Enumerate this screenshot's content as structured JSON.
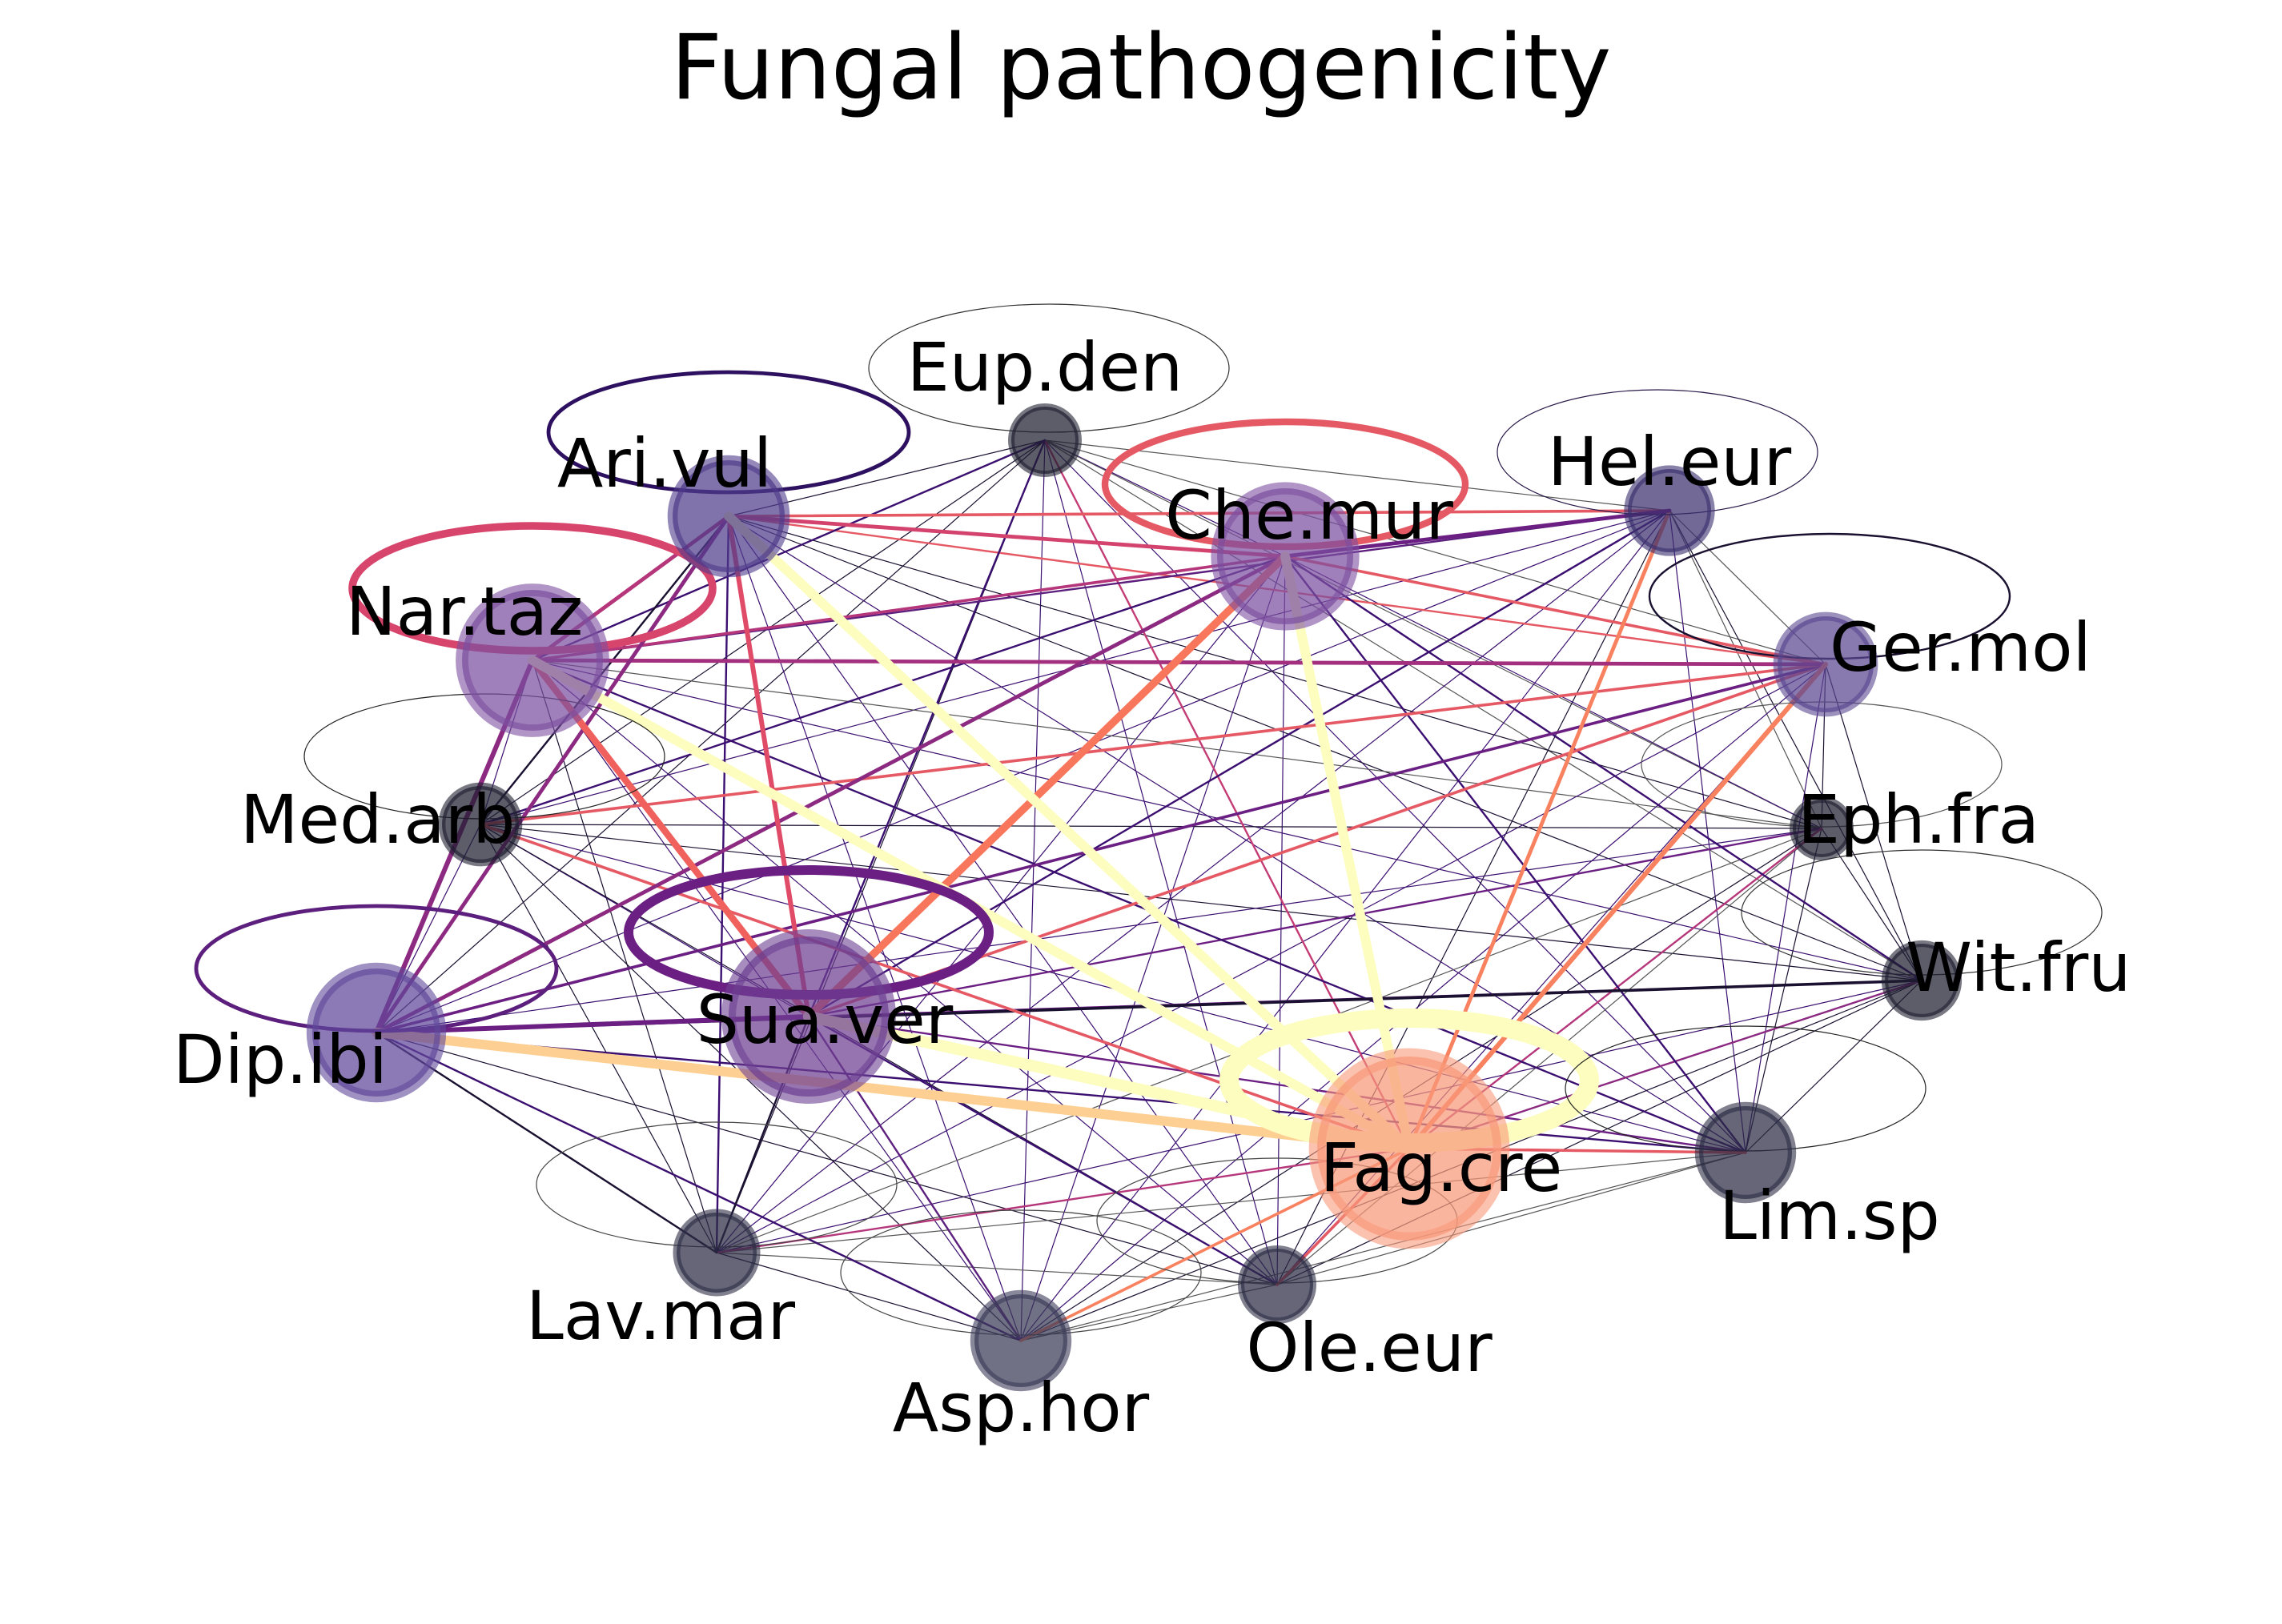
{
  "title": "Fungal pathogenicity",
  "nodes": [
    {
      "id": "Eup.den",
      "label": "Eup.den",
      "color": "#1e1e30",
      "label_pos": "above"
    },
    {
      "id": "Hel.eur",
      "label": "Hel.eur",
      "color": "#3b2f6e",
      "label_pos": "above"
    },
    {
      "id": "Ari.vul",
      "label": "Ari.vul",
      "color": "#4f3b8a",
      "label_pos": "above-left"
    },
    {
      "id": "Che.mur",
      "label": "Che.mur",
      "color": "#7b4fa0",
      "label_pos": "center"
    },
    {
      "id": "Nar.taz",
      "label": "Nar.taz",
      "color": "#7b4fa0",
      "label_pos": "above-left"
    },
    {
      "id": "Ger.mol",
      "label": "Ger.mol",
      "color": "#5a4690",
      "label_pos": "right"
    },
    {
      "id": "Med.arb",
      "label": "Med.arb",
      "color": "#1e1e30",
      "label_pos": "left"
    },
    {
      "id": "Eph.fra",
      "label": "Eph.fra",
      "color": "#1e1e30",
      "label_pos": "right"
    },
    {
      "id": "Wit.fru",
      "label": "Wit.fru",
      "color": "#1e1e30",
      "label_pos": "right"
    },
    {
      "id": "Dip.ibi",
      "label": "Dip.ibi",
      "color": "#5f479a",
      "label_pos": "below-left"
    },
    {
      "id": "Sua.ver",
      "label": "Sua.ver",
      "color": "#6d3f92",
      "label_pos": "center"
    },
    {
      "id": "Fag.cre",
      "label": "Fag.cre",
      "color": "#f8997a",
      "label_pos": "center"
    },
    {
      "id": "Lim.sp",
      "label": "Lim.sp",
      "color": "#2b2b44",
      "label_pos": "below"
    },
    {
      "id": "Lav.mar",
      "label": "Lav.mar",
      "color": "#2b2b44",
      "label_pos": "below-left"
    },
    {
      "id": "Ole.eur",
      "label": "Ole.eur",
      "color": "#2b2b44",
      "label_pos": "below"
    },
    {
      "id": "Asp.hor",
      "label": "Asp.hor",
      "color": "#3a3a58",
      "label_pos": "below"
    }
  ],
  "self_loops": [
    {
      "node": "Ari.vul",
      "color": "#2d1160",
      "weight": 4
    },
    {
      "node": "Eup.den",
      "color": "#333333",
      "weight": 1
    },
    {
      "node": "Che.mur",
      "color": "#e55964",
      "weight": 7
    },
    {
      "node": "Hel.eur",
      "color": "#2a1a4a",
      "weight": 1
    },
    {
      "node": "Nar.taz",
      "color": "#d8456c",
      "weight": 8
    },
    {
      "node": "Ger.mol",
      "color": "#1a1030",
      "weight": 2
    },
    {
      "node": "Med.arb",
      "color": "#222222",
      "weight": 1
    },
    {
      "node": "Eph.fra",
      "color": "#555555",
      "weight": 1
    },
    {
      "node": "Wit.fru",
      "color": "#333333",
      "weight": 1
    },
    {
      "node": "Dip.ibi",
      "color": "#5c1f7d",
      "weight": 4
    },
    {
      "node": "Sua.ver",
      "color": "#6b1f83",
      "weight": 10
    },
    {
      "node": "Fag.cre",
      "color": "#fcfdbf",
      "weight": 20
    },
    {
      "node": "Lim.sp",
      "color": "#222222",
      "weight": 1
    },
    {
      "node": "Lav.mar",
      "color": "#444444",
      "weight": 1
    },
    {
      "node": "Ole.eur",
      "color": "#444444",
      "weight": 1
    },
    {
      "node": "Asp.hor",
      "color": "#444444",
      "weight": 1
    }
  ],
  "edges": [
    {
      "source": "Ari.vul",
      "target": "Fag.cre",
      "color": "#fcfdbf",
      "weight": 10
    },
    {
      "source": "Nar.taz",
      "target": "Fag.cre",
      "color": "#fcfdbf",
      "weight": 10
    },
    {
      "source": "Che.mur",
      "target": "Fag.cre",
      "color": "#fcfdbf",
      "weight": 10
    },
    {
      "source": "Sua.ver",
      "target": "Fag.cre",
      "color": "#fcfdbf",
      "weight": 12
    },
    {
      "source": "Dip.ibi",
      "target": "Fag.cre",
      "color": "#fecf92",
      "weight": 10
    },
    {
      "source": "Che.mur",
      "target": "Sua.ver",
      "color": "#f8765c",
      "weight": 8
    },
    {
      "source": "Nar.taz",
      "target": "Sua.ver",
      "color": "#f0605d",
      "weight": 7
    },
    {
      "source": "Ari.vul",
      "target": "Sua.ver",
      "color": "#e04c68",
      "weight": 5
    },
    {
      "source": "Hel.eur",
      "target": "Fag.cre",
      "color": "#f8815f",
      "weight": 4
    },
    {
      "source": "Ger.mol",
      "target": "Fag.cre",
      "color": "#f8815f",
      "weight": 5
    },
    {
      "source": "Asp.hor",
      "target": "Fag.cre",
      "color": "#f8815f",
      "weight": 3
    },
    {
      "source": "Ole.eur",
      "target": "Fag.cre",
      "color": "#e55964",
      "weight": 3
    },
    {
      "source": "Lim.sp",
      "target": "Fag.cre",
      "color": "#e55964",
      "weight": 3
    },
    {
      "source": "Ger.mol",
      "target": "Sua.ver",
      "color": "#e55964",
      "weight": 3
    },
    {
      "source": "Ari.vul",
      "target": "Che.mur",
      "color": "#d3436e",
      "weight": 4
    },
    {
      "source": "Nar.taz",
      "target": "Ger.mol",
      "color": "#a3307e",
      "weight": 4
    },
    {
      "source": "Che.mur",
      "target": "Ger.mol",
      "color": "#e55964",
      "weight": 3
    },
    {
      "source": "Ari.vul",
      "target": "Hel.eur",
      "color": "#e55964",
      "weight": 3
    },
    {
      "source": "Nar.taz",
      "target": "Che.mur",
      "color": "#b5367a",
      "weight": 3
    },
    {
      "source": "Nar.taz",
      "target": "Dip.ibi",
      "color": "#8c2981",
      "weight": 5
    },
    {
      "source": "Dip.ibi",
      "target": "Che.mur",
      "color": "#8c2981",
      "weight": 4
    },
    {
      "source": "Dip.ibi",
      "target": "Sua.ver",
      "color": "#6b1f83",
      "weight": 5
    },
    {
      "source": "Dip.ibi",
      "target": "Ari.vul",
      "color": "#8c2981",
      "weight": 4
    },
    {
      "source": "Dip.ibi",
      "target": "Ger.mol",
      "color": "#6b1f83",
      "weight": 3
    },
    {
      "source": "Dip.ibi",
      "target": "Wit.fru",
      "color": "#1a1030",
      "weight": 3
    },
    {
      "source": "Che.mur",
      "target": "Hel.eur",
      "color": "#6b1f83",
      "weight": 4
    },
    {
      "source": "Nar.taz",
      "target": "Ari.vul",
      "color": "#b5367a",
      "weight": 4
    },
    {
      "source": "Med.arb",
      "target": "Fag.cre",
      "color": "#e55964",
      "weight": 3
    },
    {
      "source": "Med.arb",
      "target": "Ger.mol",
      "color": "#e55964",
      "weight": 3
    },
    {
      "source": "Ari.vul",
      "target": "Ger.mol",
      "color": "#e55964",
      "weight": 2
    },
    {
      "source": "Sua.ver",
      "target": "Eph.fra",
      "color": "#6b1f83",
      "weight": 2
    },
    {
      "source": "Sua.ver",
      "target": "Wit.fru",
      "color": "#6b1f83",
      "weight": 2
    },
    {
      "source": "Sua.ver",
      "target": "Lim.sp",
      "color": "#6b1f83",
      "weight": 2
    },
    {
      "source": "Fag.cre",
      "target": "Wit.fru",
      "color": "#8c2981",
      "weight": 2
    },
    {
      "source": "Fag.cre",
      "target": "Eph.fra",
      "color": "#b5367a",
      "weight": 2
    },
    {
      "source": "Lav.mar",
      "target": "Fag.cre",
      "color": "#b5367a",
      "weight": 2
    },
    {
      "source": "Asp.hor",
      "target": "Sua.ver",
      "color": "#5c1f7d",
      "weight": 2
    },
    {
      "source": "Eup.den",
      "target": "Fag.cre",
      "color": "#c43c75",
      "weight": 2
    },
    {
      "source": "Eup.den",
      "target": "Ari.vul",
      "color": "#1a1030",
      "weight": 1
    },
    {
      "source": "Eup.den",
      "target": "Nar.taz",
      "color": "#3b0f70",
      "weight": 2
    },
    {
      "source": "Eup.den",
      "target": "Sua.ver",
      "color": "#3b0f70",
      "weight": 2
    },
    {
      "source": "Eup.den",
      "target": "Che.mur",
      "color": "#3b0f70",
      "weight": 1
    },
    {
      "source": "Eup.den",
      "target": "Dip.ibi",
      "color": "#1a1030",
      "weight": 1
    },
    {
      "source": "Eup.den",
      "target": "Lim.sp",
      "color": "#3b0f70",
      "weight": 1
    },
    {
      "source": "Eup.den",
      "target": "Asp.hor",
      "color": "#3b0f70",
      "weight": 1
    },
    {
      "source": "Eup.den",
      "target": "Ger.mol",
      "color": "#555555",
      "weight": 1
    },
    {
      "source": "Eup.den",
      "target": "Hel.eur",
      "color": "#555555",
      "weight": 1
    },
    {
      "source": "Eup.den",
      "target": "Med.arb",
      "color": "#1a1030",
      "weight": 1
    },
    {
      "source": "Eup.den",
      "target": "Lav.mar",
      "color": "#1a1030",
      "weight": 1
    },
    {
      "source": "Eup.den",
      "target": "Ole.eur",
      "color": "#3b0f70",
      "weight": 1
    },
    {
      "source": "Eup.den",
      "target": "Wit.fru",
      "color": "#555555",
      "weight": 1
    },
    {
      "source": "Eup.den",
      "target": "Eph.fra",
      "color": "#555555",
      "weight": 1
    },
    {
      "source": "Hel.eur",
      "target": "Nar.taz",
      "color": "#5c1f7d",
      "weight": 2
    },
    {
      "source": "Hel.eur",
      "target": "Sua.ver",
      "color": "#3b0f70",
      "weight": 2
    },
    {
      "source": "Hel.eur",
      "target": "Dip.ibi",
      "color": "#3b0f70",
      "weight": 1
    },
    {
      "source": "Hel.eur",
      "target": "Lim.sp",
      "color": "#3b0f70",
      "weight": 1
    },
    {
      "source": "Hel.eur",
      "target": "Asp.hor",
      "color": "#3b0f70",
      "weight": 1
    },
    {
      "source": "Hel.eur",
      "target": "Med.arb",
      "color": "#3b0f70",
      "weight": 1
    },
    {
      "source": "Hel.eur",
      "target": "Lav.mar",
      "color": "#3b0f70",
      "weight": 1
    },
    {
      "source": "Hel.eur",
      "target": "Ole.eur",
      "color": "#1a1030",
      "weight": 1
    },
    {
      "source": "Hel.eur",
      "target": "Wit.fru",
      "color": "#1a1030",
      "weight": 1
    },
    {
      "source": "Hel.eur",
      "target": "Eph.fra",
      "color": "#555555",
      "weight": 1
    },
    {
      "source": "Hel.eur",
      "target": "Ger.mol",
      "color": "#555555",
      "weight": 1
    },
    {
      "source": "Ari.vul",
      "target": "Med.arb",
      "color": "#1a1030",
      "weight": 2
    },
    {
      "source": "Ari.vul",
      "target": "Lav.mar",
      "color": "#3b0f70",
      "weight": 2
    },
    {
      "source": "Ari.vul",
      "target": "Asp.hor",
      "color": "#3b0f70",
      "weight": 1
    },
    {
      "source": "Ari.vul",
      "target": "Ole.eur",
      "color": "#3b0f70",
      "weight": 1
    },
    {
      "source": "Ari.vul",
      "target": "Lim.sp",
      "color": "#3b0f70",
      "weight": 1
    },
    {
      "source": "Ari.vul",
      "target": "Wit.fru",
      "color": "#1a1030",
      "weight": 1
    },
    {
      "source": "Ari.vul",
      "target": "Eph.fra",
      "color": "#1a1030",
      "weight": 1
    },
    {
      "source": "Che.mur",
      "target": "Med.arb",
      "color": "#3b0f70",
      "weight": 2
    },
    {
      "source": "Che.mur",
      "target": "Lav.mar",
      "color": "#3b0f70",
      "weight": 1
    },
    {
      "source": "Che.mur",
      "target": "Asp.hor",
      "color": "#3b0f70",
      "weight": 1
    },
    {
      "source": "Che.mur",
      "target": "Ole.eur",
      "color": "#3b0f70",
      "weight": 1
    },
    {
      "source": "Che.mur",
      "target": "Lim.sp",
      "color": "#3b0f70",
      "weight": 2
    },
    {
      "source": "Che.mur",
      "target": "Wit.fru",
      "color": "#3b0f70",
      "weight": 2
    },
    {
      "source": "Che.mur",
      "target": "Eph.fra",
      "color": "#3b0f70",
      "weight": 1
    },
    {
      "source": "Nar.taz",
      "target": "Med.arb",
      "color": "#3b0f70",
      "weight": 1
    },
    {
      "source": "Nar.taz",
      "target": "Lav.mar",
      "color": "#1a1030",
      "weight": 1
    },
    {
      "source": "Nar.taz",
      "target": "Asp.hor",
      "color": "#3b0f70",
      "weight": 1
    },
    {
      "source": "Nar.taz",
      "target": "Ole.eur",
      "color": "#3b0f70",
      "weight": 1
    },
    {
      "source": "Nar.taz",
      "target": "Lim.sp",
      "color": "#3b0f70",
      "weight": 2
    },
    {
      "source": "Nar.taz",
      "target": "Wit.fru",
      "color": "#3b0f70",
      "weight": 1
    },
    {
      "source": "Nar.taz",
      "target": "Eph.fra",
      "color": "#555555",
      "weight": 1
    },
    {
      "source": "Ger.mol",
      "target": "Med.arb",
      "color": "#3b0f70",
      "weight": 1
    },
    {
      "source": "Ger.mol",
      "target": "Lav.mar",
      "color": "#3b0f70",
      "weight": 1
    },
    {
      "source": "Ger.mol",
      "target": "Asp.hor",
      "color": "#3b0f70",
      "weight": 1
    },
    {
      "source": "Ger.mol",
      "target": "Ole.eur",
      "color": "#3b0f70",
      "weight": 1
    },
    {
      "source": "Ger.mol",
      "target": "Lim.sp",
      "color": "#3b0f70",
      "weight": 1
    },
    {
      "source": "Ger.mol",
      "target": "Wit.fru",
      "color": "#1a1030",
      "weight": 1
    },
    {
      "source": "Ger.mol",
      "target": "Eph.fra",
      "color": "#1a1030",
      "weight": 1
    },
    {
      "source": "Med.arb",
      "target": "Sua.ver",
      "color": "#3b0f70",
      "weight": 1
    },
    {
      "source": "Med.arb",
      "target": "Dip.ibi",
      "color": "#3b0f70",
      "weight": 1
    },
    {
      "source": "Med.arb",
      "target": "Lav.mar",
      "color": "#1a1030",
      "weight": 1
    },
    {
      "source": "Med.arb",
      "target": "Asp.hor",
      "color": "#1a1030",
      "weight": 1
    },
    {
      "source": "Med.arb",
      "target": "Ole.eur",
      "color": "#1a1030",
      "weight": 1
    },
    {
      "source": "Med.arb",
      "target": "Lim.sp",
      "color": "#3b0f70",
      "weight": 1
    },
    {
      "source": "Med.arb",
      "target": "Wit.fru",
      "color": "#1a1030",
      "weight": 1
    },
    {
      "source": "Med.arb",
      "target": "Eph.fra",
      "color": "#1a1030",
      "weight": 1
    },
    {
      "source": "Eph.fra",
      "target": "Dip.ibi",
      "color": "#3b0f70",
      "weight": 1
    },
    {
      "source": "Eph.fra",
      "target": "Lav.mar",
      "color": "#555555",
      "weight": 1
    },
    {
      "source": "Eph.fra",
      "target": "Asp.hor",
      "color": "#1a1030",
      "weight": 1
    },
    {
      "source": "Eph.fra",
      "target": "Ole.eur",
      "color": "#555555",
      "weight": 1
    },
    {
      "source": "Eph.fra",
      "target": "Lim.sp",
      "color": "#1a1030",
      "weight": 1
    },
    {
      "source": "Eph.fra",
      "target": "Wit.fru",
      "color": "#1a1030",
      "weight": 1
    },
    {
      "source": "Wit.fru",
      "target": "Lav.mar",
      "color": "#3b0f70",
      "weight": 1
    },
    {
      "source": "Wit.fru",
      "target": "Asp.hor",
      "color": "#1a1030",
      "weight": 1
    },
    {
      "source": "Wit.fru",
      "target": "Ole.eur",
      "color": "#1a1030",
      "weight": 1
    },
    {
      "source": "Wit.fru",
      "target": "Lim.sp",
      "color": "#1a1030",
      "weight": 1
    },
    {
      "source": "Dip.ibi",
      "target": "Lav.mar",
      "color": "#1a1030",
      "weight": 2
    },
    {
      "source": "Dip.ibi",
      "target": "Asp.hor",
      "color": "#3b0f70",
      "weight": 2
    },
    {
      "source": "Dip.ibi",
      "target": "Ole.eur",
      "color": "#1a1030",
      "weight": 1
    },
    {
      "source": "Dip.ibi",
      "target": "Lim.sp",
      "color": "#3b0f70",
      "weight": 2
    },
    {
      "source": "Sua.ver",
      "target": "Lav.mar",
      "color": "#1a1030",
      "weight": 2
    },
    {
      "source": "Sua.ver",
      "target": "Ole.eur",
      "color": "#3b0f70",
      "weight": 2
    },
    {
      "source": "Fag.cre",
      "target": "Lim.sp",
      "color": "#e55964",
      "weight": 2
    },
    {
      "source": "Lav.mar",
      "target": "Asp.hor",
      "color": "#1a1030",
      "weight": 1
    },
    {
      "source": "Lav.mar",
      "target": "Ole.eur",
      "color": "#555555",
      "weight": 1
    },
    {
      "source": "Lav.mar",
      "target": "Lim.sp",
      "color": "#555555",
      "weight": 1
    },
    {
      "source": "Asp.hor",
      "target": "Ole.eur",
      "color": "#555555",
      "weight": 1
    },
    {
      "source": "Asp.hor",
      "target": "Lim.sp",
      "color": "#555555",
      "weight": 1
    },
    {
      "source": "Ole.eur",
      "target": "Lim.sp",
      "color": "#555555",
      "weight": 1
    }
  ]
}
